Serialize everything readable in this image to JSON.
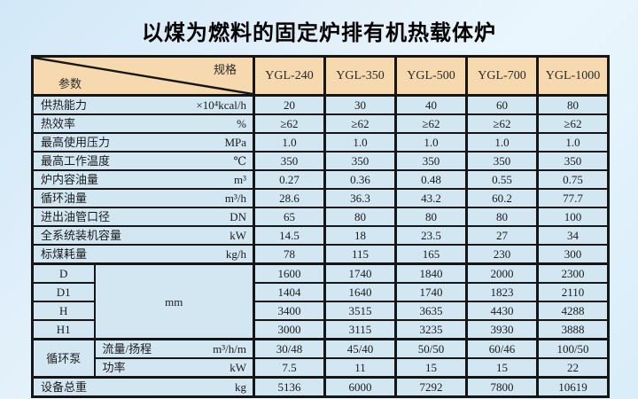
{
  "title": "以煤为燃料的固定炉排有机热载体炉",
  "table": {
    "corner": {
      "top_right": "规格",
      "bottom_left": "参数"
    },
    "columns": [
      "YGL-240",
      "YGL-350",
      "YGL-500",
      "YGL-700",
      "YGL-1000"
    ],
    "rows": [
      {
        "kind": "simple",
        "label": "供热能力",
        "unit": "×10⁴kcal/h",
        "values": [
          "20",
          "30",
          "40",
          "60",
          "80"
        ]
      },
      {
        "kind": "simple",
        "label": "热效率",
        "unit": "%",
        "values": [
          "≥62",
          "≥62",
          "≥62",
          "≥62",
          "≥62"
        ]
      },
      {
        "kind": "simple",
        "label": "最高使用压力",
        "unit": "MPa",
        "values": [
          "1.0",
          "1.0",
          "1.0",
          "1.0",
          "1.0"
        ]
      },
      {
        "kind": "simple",
        "label": "最高工作温度",
        "unit": "℃",
        "values": [
          "350",
          "350",
          "350",
          "350",
          "350"
        ]
      },
      {
        "kind": "simple",
        "label": "炉内容油量",
        "unit": "m³",
        "values": [
          "0.27",
          "0.36",
          "0.48",
          "0.55",
          "0.75"
        ]
      },
      {
        "kind": "simple",
        "label": "循环油量",
        "unit": "m³/h",
        "values": [
          "28.6",
          "36.3",
          "43.2",
          "60.2",
          "77.7"
        ]
      },
      {
        "kind": "simple",
        "label": "进出油管口径",
        "unit": "DN",
        "values": [
          "65",
          "80",
          "80",
          "80",
          "100"
        ]
      },
      {
        "kind": "simple",
        "label": "全系统装机容量",
        "unit": "kW",
        "values": [
          "14.5",
          "18",
          "23.5",
          "27",
          "34"
        ]
      },
      {
        "kind": "simple",
        "label": "标煤耗量",
        "unit": "kg/h",
        "values": [
          "78",
          "115",
          "165",
          "230",
          "300"
        ]
      },
      {
        "kind": "dim",
        "sep": true,
        "label": "D",
        "merged_unit": "mm",
        "merge_span": 4,
        "values": [
          "1600",
          "1740",
          "1840",
          "2000",
          "2300"
        ]
      },
      {
        "kind": "dim",
        "label": "D1",
        "values": [
          "1404",
          "1640",
          "1740",
          "1823",
          "2110"
        ]
      },
      {
        "kind": "dim",
        "label": "H",
        "values": [
          "3400",
          "3515",
          "3635",
          "4430",
          "4288"
        ]
      },
      {
        "kind": "dim",
        "label": "H1",
        "values": [
          "3000",
          "3115",
          "3235",
          "3930",
          "3888"
        ]
      },
      {
        "kind": "pump",
        "sep": true,
        "group": "循环泵",
        "group_span": 2,
        "label": "流量/扬程",
        "unit": "m³/h/m",
        "values": [
          "30/48",
          "45/40",
          "50/50",
          "60/46",
          "100/50"
        ]
      },
      {
        "kind": "pump",
        "label": "功率",
        "unit": "kW",
        "values": [
          "7.5",
          "11",
          "15",
          "15",
          "22"
        ]
      },
      {
        "kind": "simple",
        "sep": true,
        "label": "设备总重",
        "unit": "kg",
        "values": [
          "5136",
          "6000",
          "7292",
          "7800",
          "10619"
        ]
      }
    ]
  }
}
